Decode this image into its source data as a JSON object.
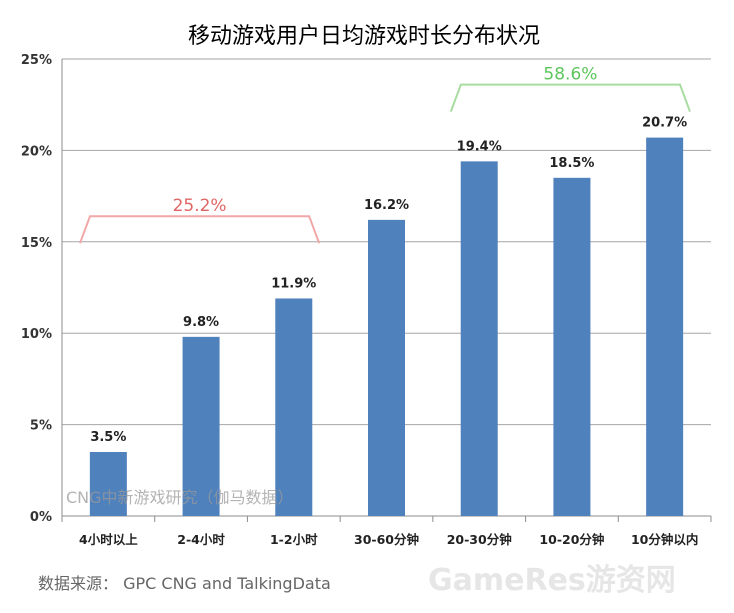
{
  "chart_data": {
    "type": "bar",
    "title": "移动游戏用户日均游戏时长分布状况",
    "categories": [
      "4小时以上",
      "2-4小时",
      "1-2小时",
      "30-60分钟",
      "20-30分钟",
      "10-20分钟",
      "10分钟以内"
    ],
    "values": [
      3.5,
      9.8,
      11.9,
      16.2,
      19.4,
      18.5,
      20.7
    ],
    "value_labels": [
      "3.5%",
      "9.8%",
      "11.9%",
      "16.2%",
      "19.4%",
      "18.5%",
      "20.7%"
    ],
    "yticks": [
      "0%",
      "5%",
      "10%",
      "15%",
      "20%",
      "25%"
    ],
    "ylim": [
      0,
      25
    ],
    "grid": true,
    "bar_color": "#4f81bd",
    "xlabel": "",
    "ylabel": "",
    "brackets": [
      {
        "label": "25.2%",
        "from": 0,
        "to": 2,
        "level": 16.4,
        "color": "#f2a7a7",
        "text_color": "#e06666"
      },
      {
        "label": "58.6%",
        "from": 4,
        "to": 6,
        "level": 23.6,
        "color": "#a8dca0",
        "text_color": "#5cc65c"
      }
    ]
  },
  "footer": {
    "source": "数据来源： GPC CNG and TalkingData",
    "watermark_cng": "CNG中新游戏研究（伽马数据）",
    "watermark_gameres": "GameRes游资网"
  }
}
